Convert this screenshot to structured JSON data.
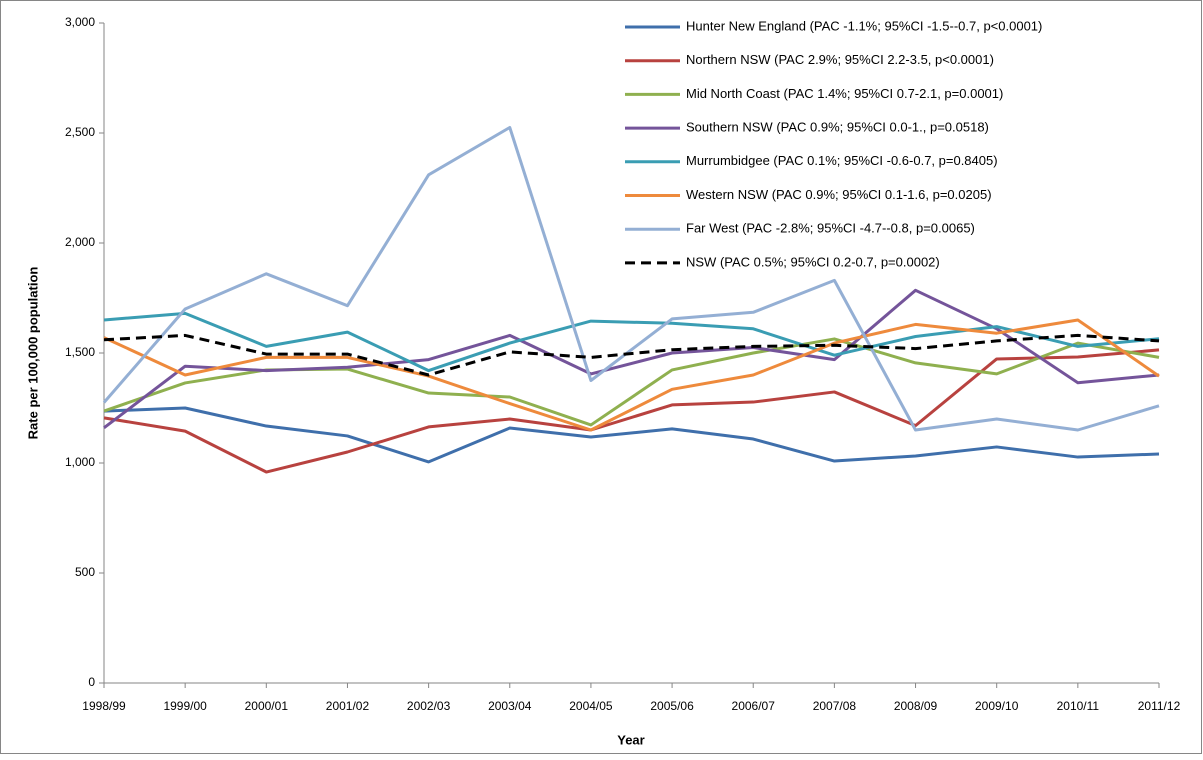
{
  "chart_data": {
    "type": "line",
    "x_label": "Year",
    "y_label": "Rate per 100,000 population",
    "categories": [
      "1998/99",
      "1999/00",
      "2000/01",
      "2001/02",
      "2002/03",
      "2003/04",
      "2004/05",
      "2005/06",
      "2006/07",
      "2007/08",
      "2008/09",
      "2009/10",
      "2010/11",
      "2011/12"
    ],
    "ylim": [
      0,
      3000
    ],
    "yticks": [
      0,
      500,
      {
        "value": 1000,
        "label": "1,000"
      },
      {
        "value": 1500,
        "label": "1,500"
      },
      {
        "value": 2000,
        "label": "2,000"
      },
      {
        "value": 2500,
        "label": "2,500"
      },
      {
        "value": 3000,
        "label": "3,000"
      }
    ],
    "legend": "top-right",
    "series": [
      {
        "name": "Hunter New England (PAC -1.1%; 95%CI -1.5--0.7, p<0.0001)",
        "color": "#3f6fab",
        "values": [
          1236,
          1250,
          1168,
          1123,
          1005,
          1159,
          1118,
          1155,
          1109,
          1009,
          1032,
          1073,
          1027,
          1041
        ]
      },
      {
        "name": "Northern NSW (PAC 2.9%; 95%CI 2.2-3.5, p<0.0001)",
        "color": "#b8423f",
        "values": [
          1205,
          1145,
          959,
          1050,
          1164,
          1200,
          1150,
          1264,
          1277,
          1323,
          1170,
          1473,
          1482,
          1514
        ]
      },
      {
        "name": "Mid North Coast (PAC 1.4%; 95%CI 0.7-2.1, p=0.0001)",
        "color": "#8fb04f",
        "values": [
          1236,
          1364,
          1423,
          1427,
          1318,
          1300,
          1173,
          1423,
          1500,
          1564,
          1455,
          1405,
          1545,
          1480
        ]
      },
      {
        "name": "Southern NSW (PAC 0.9%; 95%CI 0.0-1., p=0.0518)",
        "color": "#74549a",
        "values": [
          1160,
          1440,
          1420,
          1435,
          1470,
          1580,
          1405,
          1500,
          1525,
          1470,
          1785,
          1610,
          1365,
          1400
        ]
      },
      {
        "name": "Murrumbidgee (PAC 0.1%; 95%CI -0.6-0.7, p=0.8405)",
        "color": "#3a9db3",
        "values": [
          1650,
          1680,
          1530,
          1595,
          1420,
          1545,
          1645,
          1635,
          1610,
          1490,
          1575,
          1620,
          1530,
          1565
        ]
      },
      {
        "name": "Western NSW (PAC 0.9%; 95%CI 0.1-1.6, p=0.0205)",
        "color": "#ee8a3c",
        "values": [
          1570,
          1400,
          1480,
          1480,
          1395,
          1270,
          1150,
          1335,
          1400,
          1545,
          1630,
          1590,
          1650,
          1395
        ]
      },
      {
        "name": "Far West (PAC -2.8%; 95%CI -4.7--0.8, p=0.0065)",
        "color": "#94afd4",
        "values": [
          1275,
          1700,
          1860,
          1715,
          2310,
          2525,
          1375,
          1655,
          1685,
          1830,
          1150,
          1200,
          1150,
          1260
        ]
      },
      {
        "name": "NSW (PAC 0.5%; 95%CI 0.2-0.7, p=0.0002)",
        "color": "#000000",
        "dash": true,
        "values": [
          1560,
          1580,
          1495,
          1495,
          1400,
          1505,
          1480,
          1515,
          1530,
          1535,
          1520,
          1555,
          1580,
          1555
        ]
      }
    ]
  }
}
